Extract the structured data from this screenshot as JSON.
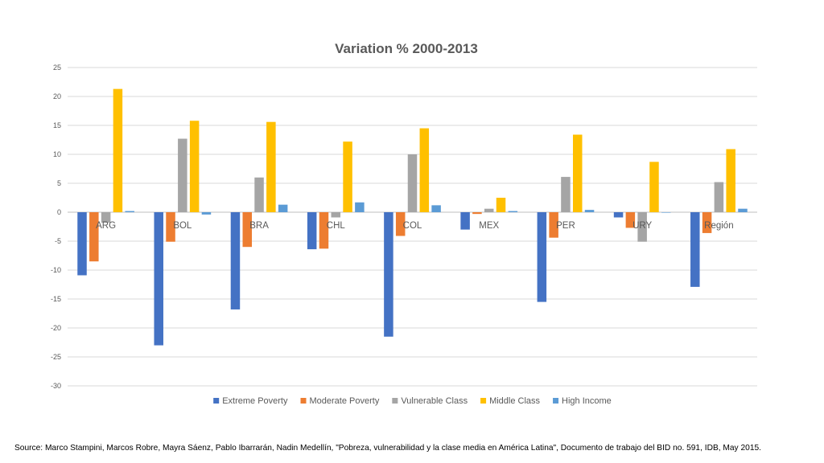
{
  "chart_data": {
    "type": "bar",
    "title": "Variation % 2000-2013",
    "xlabel": "",
    "ylabel": "",
    "ylim": [
      -30,
      25
    ],
    "yticks": [
      25,
      20,
      15,
      10,
      5,
      0,
      -5,
      -10,
      -15,
      -20,
      -25,
      -30
    ],
    "grid": true,
    "legend_position": "bottom",
    "categories": [
      "ARG",
      "BOL",
      "BRA",
      "CHL",
      "COL",
      "MEX",
      "PER",
      "URY",
      "Región"
    ],
    "series": [
      {
        "name": "Extreme Poverty",
        "color": "#4472C4",
        "values": [
          -10.9,
          -23.0,
          -16.8,
          -6.4,
          -21.5,
          -3.0,
          -15.5,
          -0.9,
          -12.9
        ]
      },
      {
        "name": "Moderate Poverty",
        "color": "#ED7D31",
        "values": [
          -8.5,
          -5.1,
          -6.0,
          -6.3,
          -4.1,
          -0.3,
          -4.4,
          -2.7,
          -3.6
        ]
      },
      {
        "name": "Vulnerable Class",
        "color": "#A5A5A5",
        "values": [
          -1.8,
          12.7,
          6.0,
          -0.9,
          10.0,
          0.6,
          6.1,
          -5.1,
          5.2
        ]
      },
      {
        "name": "Middle Class",
        "color": "#FFC000",
        "values": [
          21.3,
          15.8,
          15.6,
          12.2,
          14.5,
          2.5,
          13.4,
          8.7,
          10.9
        ]
      },
      {
        "name": "High Income",
        "color": "#5B9BD5",
        "values": [
          0.2,
          -0.4,
          1.3,
          1.7,
          1.2,
          0.2,
          0.4,
          0.0,
          0.6
        ]
      }
    ]
  },
  "source_note": "Source: Marco Stampini, Marcos Robre, Mayra Sáenz, Pablo Ibarrarán, Nadin Medellín, \"Pobreza, vulnerabilidad y la clase media en América Latina\",  Documento de trabajo del BID no. 591, IDB, May 2015."
}
